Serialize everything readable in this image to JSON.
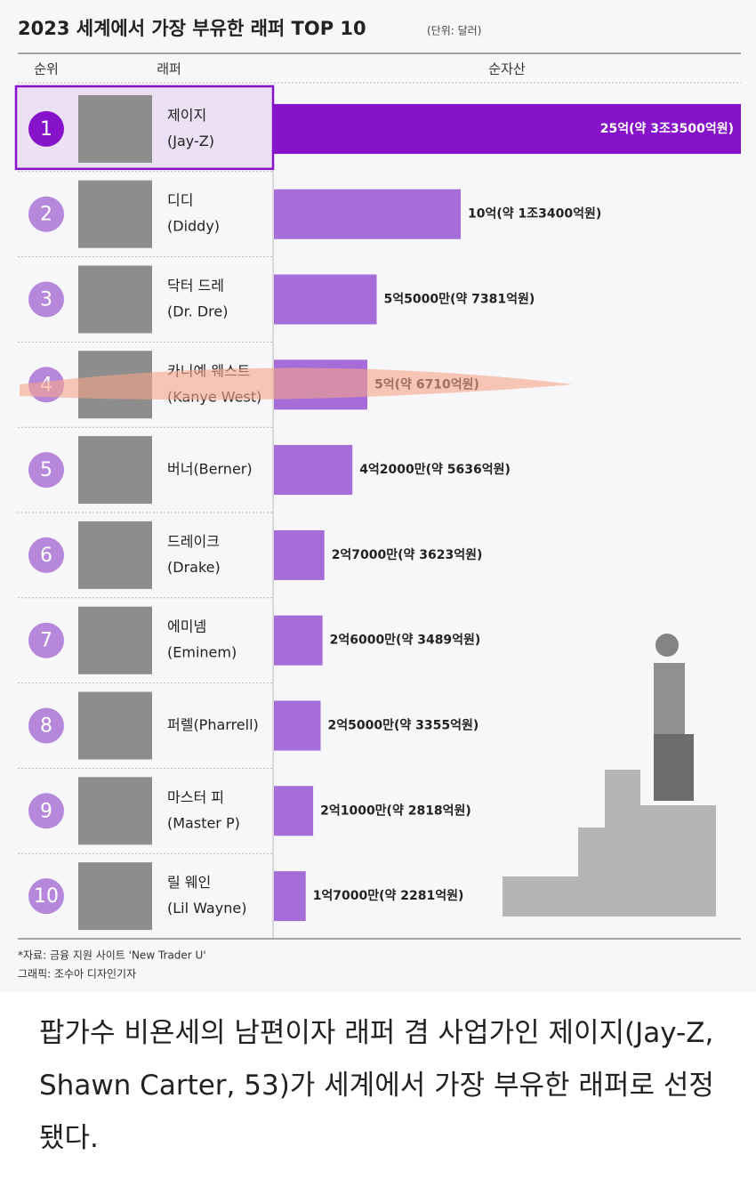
{
  "chart_data": {
    "type": "bar",
    "title": "2023 세계에서 가장 부유한 래퍼 TOP 10",
    "unit": "(단위: 달러)",
    "headers": [
      "순위",
      "래퍼",
      "순자산"
    ],
    "ranks": [
      1,
      2,
      3,
      4,
      5,
      6,
      7,
      8,
      9,
      10
    ],
    "categories": [
      [
        "제이지",
        "(Jay-Z)"
      ],
      [
        "디디",
        "(Diddy)"
      ],
      [
        "닥터 드레",
        "(Dr. Dre)"
      ],
      [
        "카니예 웨스트",
        "(Kanye West)"
      ],
      [
        "버너(Berner)"
      ],
      [
        "드레이크",
        "(Drake)"
      ],
      [
        "에미넴",
        "(Eminem)"
      ],
      [
        "퍼렐(Pharrell)"
      ],
      [
        "마스터 피",
        "(Master P)"
      ],
      [
        "릴 웨인",
        "(Lil Wayne)"
      ]
    ],
    "values": [
      25,
      10,
      5.5,
      5,
      4.2,
      2.7,
      2.6,
      2.5,
      2.1,
      1.7
    ],
    "value_labels": [
      "25억(약 3조3500억원)",
      "10억(약 1조3400억원)",
      "5억5000만(약 7381억원)",
      "5억(약 6710억원)",
      "4억2000만(약 5636억원)",
      "2억7000만(약 3623억원)",
      "2억6000만(약 3489억원)",
      "2억5000만(약 3355억원)",
      "2억1000만(약 2818억원)",
      "1억7000만(약 2281억원)"
    ],
    "color": "#a66cd8",
    "highlight_color": "#8612c9",
    "source": "*자료: 금융 지원 사이트 'New Trader U'",
    "credit": "그래픽: 조수아 디자인기자"
  },
  "caption": "팝가수 비욘세의 남편이자 래퍼 겸 사업가인 제이지(Jay-Z, Shawn Carter, 53)가 세계에서 가장 부유한 래퍼로 선정됐다."
}
